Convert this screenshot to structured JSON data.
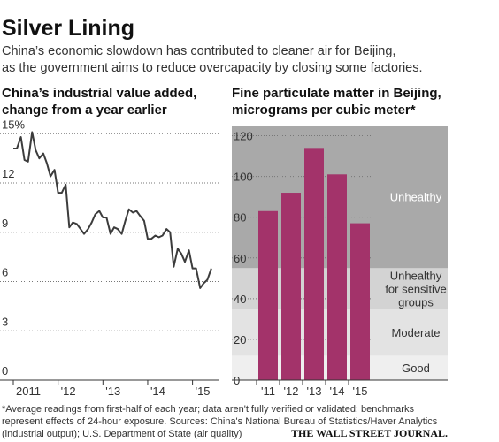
{
  "title": "Silver Lining",
  "subtitle": [
    "China’s economic slowdown has contributed to cleaner air for Beijing,",
    "as the government aims to reduce overcapacity by closing some factories."
  ],
  "footnote": [
    "*Average readings from first-half of each year; data aren't fully verified or validated; benchmarks",
    "represent effects of 24-hour exposure. Sources: China's National Bureau of Statistics/Haver Analytics",
    "(industrial output); U.S. Department of State (air quality)"
  ],
  "source": "THE WALL STREET JOURNAL.",
  "chart_data": [
    {
      "type": "line",
      "title": "China’s industrial value added,",
      "subtitle": "change from a year earlier",
      "x": [
        2011,
        2011.08,
        2011.17,
        2011.25,
        2011.33,
        2011.42,
        2011.5,
        2011.58,
        2011.67,
        2011.75,
        2011.83,
        2011.92,
        2012,
        2012.08,
        2012.17,
        2012.25,
        2012.33,
        2012.42,
        2012.5,
        2012.58,
        2012.67,
        2012.75,
        2012.83,
        2012.92,
        2013,
        2013.08,
        2013.17,
        2013.25,
        2013.33,
        2013.42,
        2013.5,
        2013.58,
        2013.67,
        2013.75,
        2013.83,
        2013.92,
        2014,
        2014.08,
        2014.17,
        2014.25,
        2014.33,
        2014.42,
        2014.5,
        2014.58,
        2014.67,
        2014.75,
        2014.83,
        2014.92,
        2015,
        2015.08,
        2015.17,
        2015.25,
        2015.33,
        2015.42
      ],
      "series": [
        {
          "name": "Industrial value added",
          "color": "#3c3c3c",
          "values": [
            14.1,
            14.1,
            14.8,
            13.4,
            13.3,
            15.1,
            14.0,
            13.5,
            13.8,
            13.2,
            12.4,
            12.8,
            11.4,
            11.4,
            11.9,
            9.3,
            9.6,
            9.5,
            9.2,
            8.9,
            9.2,
            9.6,
            10.1,
            10.3,
            9.9,
            9.9,
            8.9,
            9.3,
            9.2,
            8.9,
            9.7,
            10.4,
            10.2,
            10.3,
            10.0,
            9.7,
            8.6,
            8.6,
            8.8,
            8.7,
            8.8,
            9.2,
            9.0,
            6.9,
            8.0,
            7.7,
            7.2,
            7.9,
            6.8,
            6.8,
            5.6,
            5.9,
            6.1,
            6.8
          ]
        }
      ],
      "xlim": [
        2011,
        2015.6
      ],
      "xticks": [
        {
          "value": 2011,
          "label": "2011"
        },
        {
          "value": 2012,
          "label": "'12"
        },
        {
          "value": 2013,
          "label": "'13"
        },
        {
          "value": 2014,
          "label": "'14"
        },
        {
          "value": 2015,
          "label": "'15"
        }
      ],
      "ylim": [
        0,
        15.5
      ],
      "yticks": [
        0,
        3,
        6,
        9,
        12,
        {
          "value": 15,
          "label": "15%"
        }
      ],
      "grid": true
    },
    {
      "type": "bar",
      "title": "Fine particulate matter in Beijing,",
      "subtitle": "micrograms per cubic meter*",
      "categories": [
        "'11",
        "'12",
        "'13",
        "'14",
        "'15"
      ],
      "values": [
        83,
        92,
        114,
        101,
        77
      ],
      "color": "#a3336a",
      "ylim": [
        0,
        125
      ],
      "yticks": [
        0,
        20,
        40,
        60,
        80,
        100,
        120
      ],
      "grid": true,
      "bands": [
        {
          "lines": [
            "Good"
          ],
          "range": [
            0,
            12
          ],
          "color": "#efefef",
          "text_color": "#333333"
        },
        {
          "lines": [
            "Moderate"
          ],
          "range": [
            12,
            35
          ],
          "color": "#e3e3e3",
          "text_color": "#333333"
        },
        {
          "lines": [
            "Unhealthy",
            "for sensitive",
            "groups"
          ],
          "range": [
            35,
            55
          ],
          "color": "#d3d3d3",
          "text_color": "#333333"
        },
        {
          "lines": [
            "Unhealthy"
          ],
          "range": [
            55,
            125
          ],
          "color": "#a9a9a9",
          "text_color": "#ffffff"
        }
      ]
    }
  ]
}
